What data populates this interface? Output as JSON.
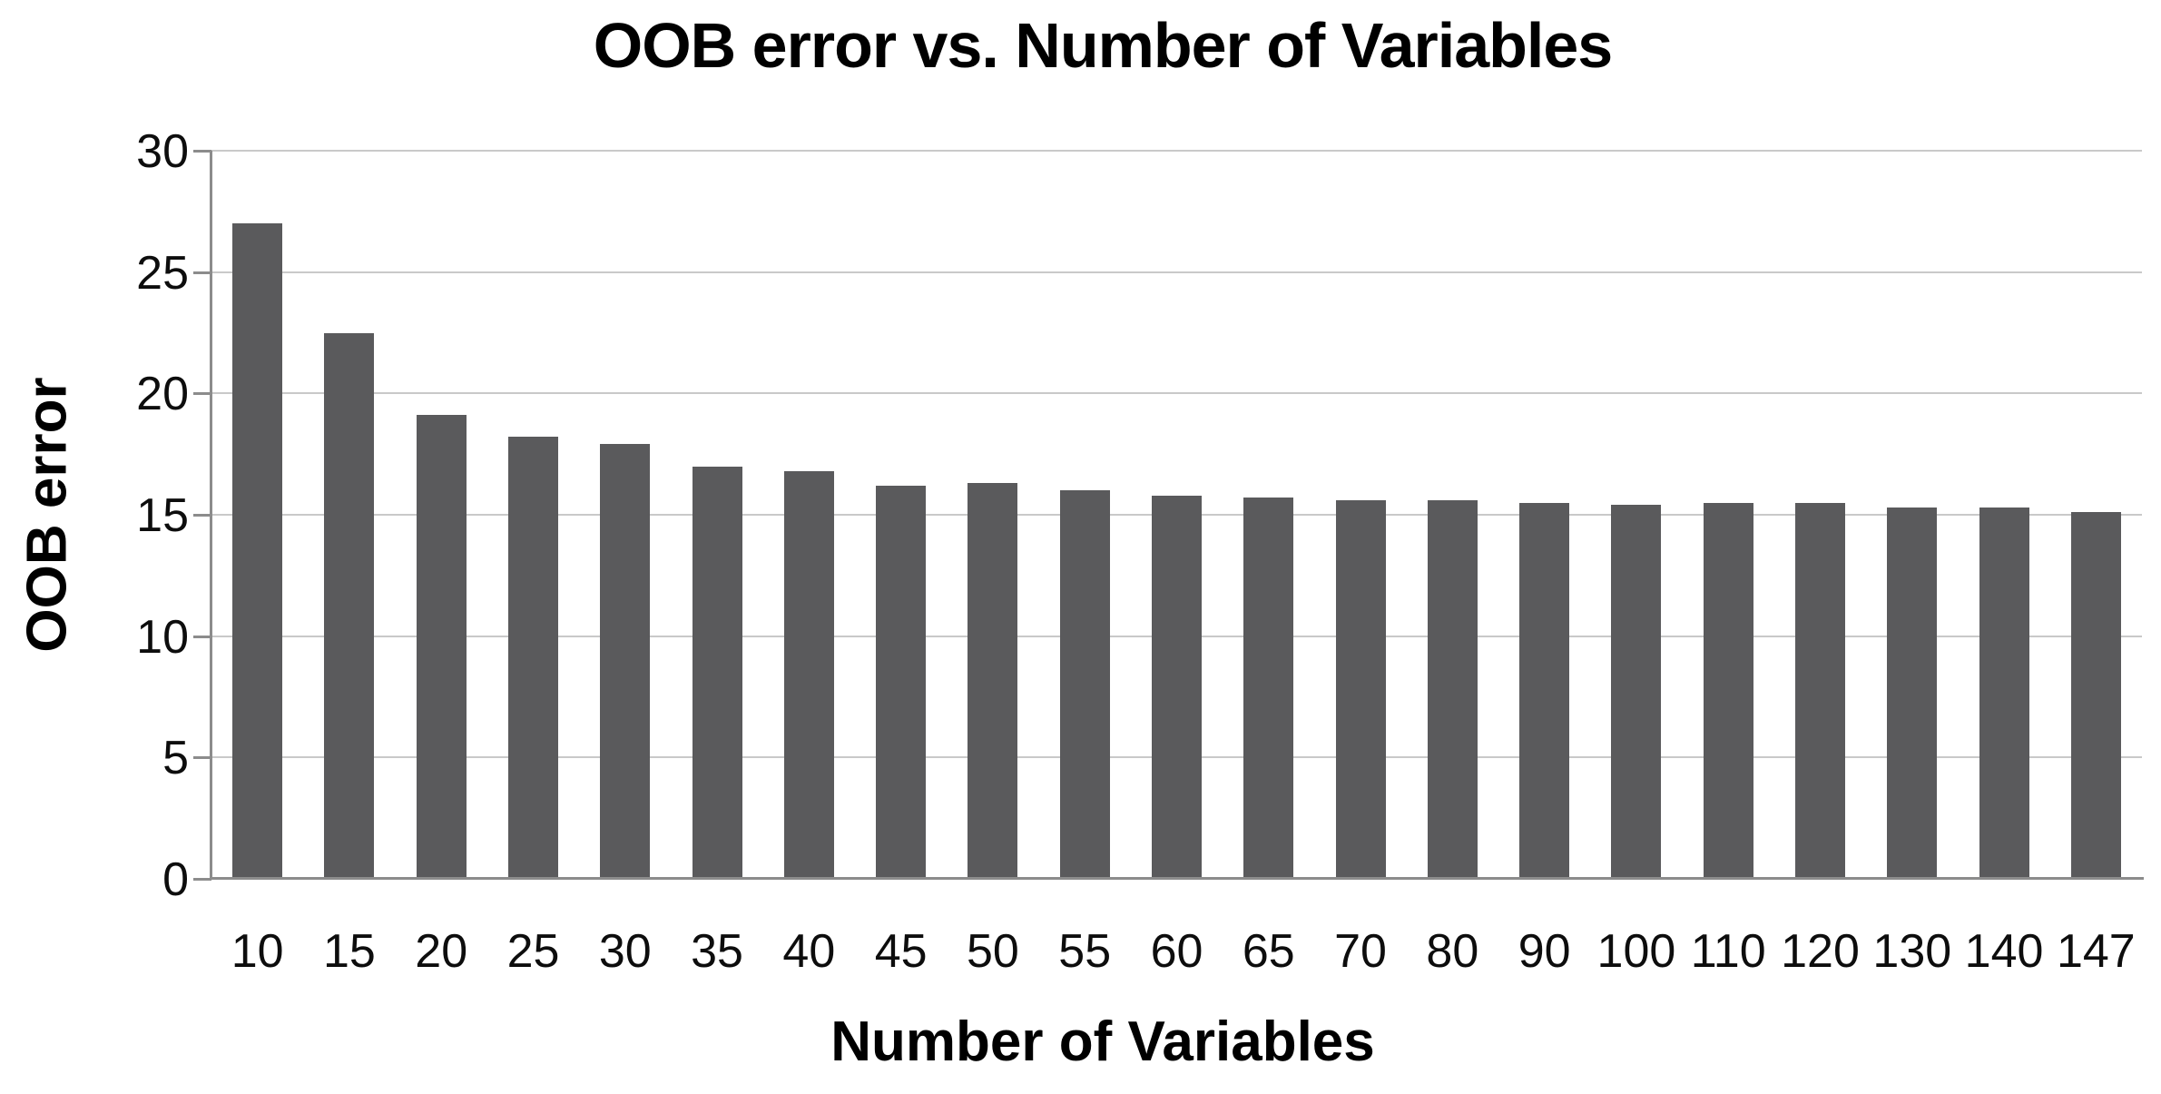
{
  "chart_data": {
    "type": "bar",
    "title": "OOB error vs. Number of Variables",
    "xlabel": "Number of Variables",
    "ylabel": "OOB error",
    "categories": [
      "10",
      "15",
      "20",
      "25",
      "30",
      "35",
      "40",
      "45",
      "50",
      "55",
      "60",
      "65",
      "70",
      "80",
      "90",
      "100",
      "110",
      "120",
      "130",
      "140",
      "147"
    ],
    "values": [
      27.0,
      22.5,
      19.1,
      18.2,
      17.9,
      17.0,
      16.8,
      16.2,
      16.3,
      16.0,
      15.8,
      15.7,
      15.6,
      15.6,
      15.5,
      15.4,
      15.5,
      15.5,
      15.3,
      15.3,
      15.1
    ],
    "ylim": [
      0,
      30
    ],
    "yticks": [
      0,
      5,
      10,
      15,
      20,
      25,
      30
    ],
    "grid": true,
    "legend_position": "none",
    "colors": {
      "bar": "#5a5a5c",
      "gridline": "#c9c9c9",
      "axis": "#8c8c8c",
      "text": "#000000",
      "background": "#ffffff"
    }
  }
}
